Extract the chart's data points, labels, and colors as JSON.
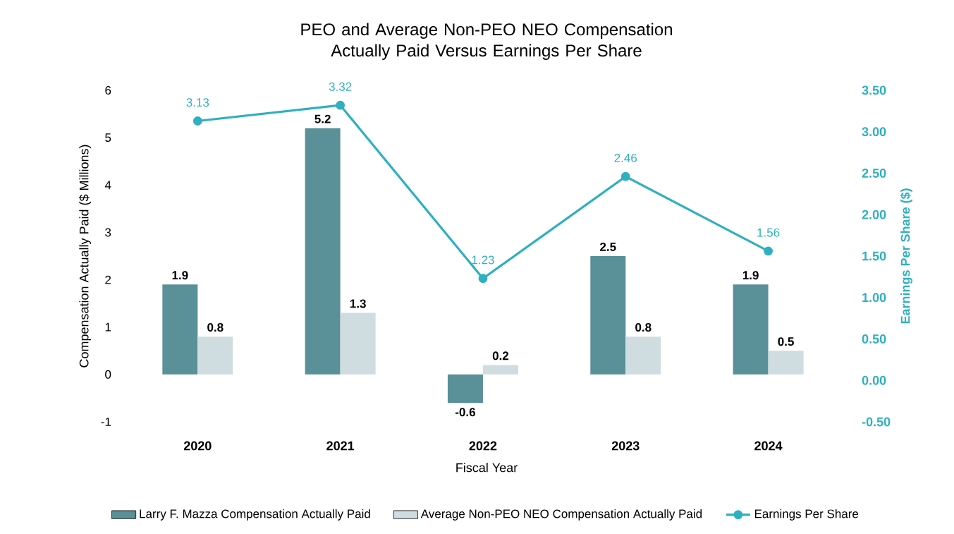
{
  "chart_data": {
    "type": "bar",
    "title": "PEO and Average Non-PEO NEO Compensation Actually Paid Versus Earnings Per Share",
    "xlabel": "Fiscal Year",
    "ylabel": "Compensation Actually Paid ($ Millions)",
    "y2label": "Earnings Per Share ($)",
    "categories": [
      "2020",
      "2021",
      "2022",
      "2023",
      "2024"
    ],
    "series": [
      {
        "name": "Larry F. Mazza Compensation Actually Paid",
        "color": "#5a9098",
        "values": [
          1.9,
          5.2,
          -0.6,
          2.5,
          1.9
        ]
      },
      {
        "name": "Average Non-PEO NEO Compensation Actually Paid",
        "color": "#d0dde0",
        "values": [
          0.8,
          1.3,
          0.2,
          0.8,
          0.5
        ]
      },
      {
        "name": "Earnings Per Share",
        "type": "line",
        "axis": "y2",
        "marker": "circle",
        "color": "#2eb0c0",
        "values": [
          3.13,
          3.32,
          1.23,
          2.46,
          1.56
        ]
      }
    ],
    "ylim": [
      -1,
      6
    ],
    "yticks": [
      -1,
      0,
      1,
      2,
      3,
      4,
      5,
      6
    ],
    "y2lim": [
      -0.5,
      3.5
    ],
    "y2ticks": [
      {
        "value": -0.5,
        "label": "-0.50"
      },
      {
        "value": 0,
        "label": "0.00"
      },
      {
        "value": 0.5,
        "label": "0.50"
      },
      {
        "value": 1,
        "label": "1.00"
      },
      {
        "value": 1.5,
        "label": "1.50"
      },
      {
        "value": 2,
        "label": "2.00"
      },
      {
        "value": 2.5,
        "label": "2.50"
      },
      {
        "value": 3,
        "label": "3.00"
      },
      {
        "value": 3.5,
        "label": "3.50"
      }
    ],
    "data_labels": true,
    "legend": "bottom"
  }
}
